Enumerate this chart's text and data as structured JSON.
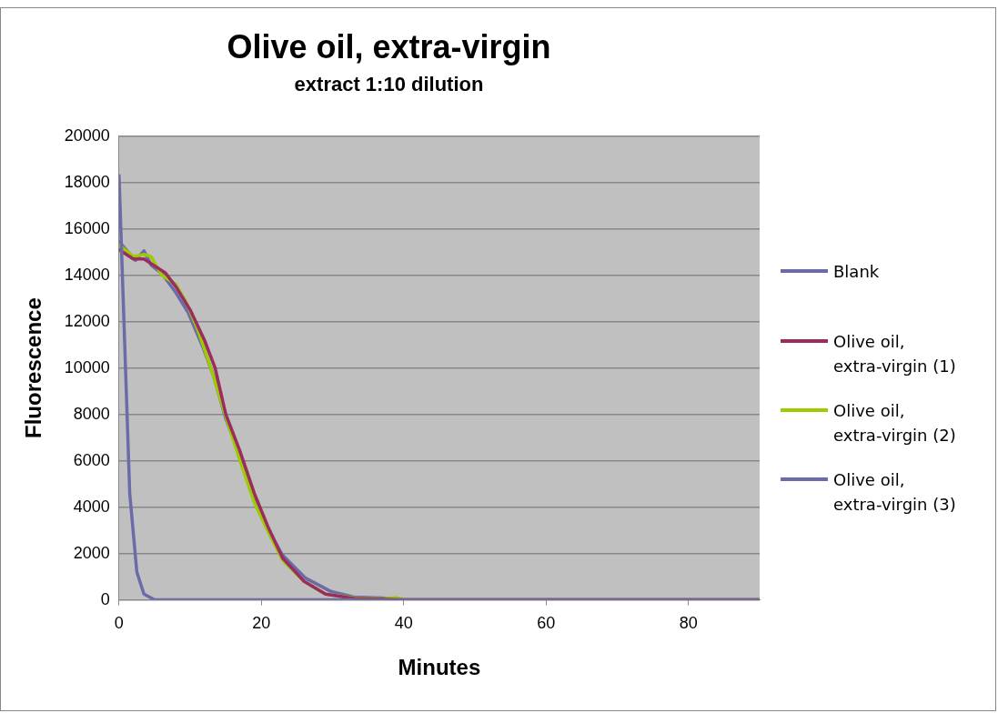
{
  "chart_data": {
    "type": "line",
    "title": "Olive oil, extra-virgin",
    "subtitle": "extract 1:10 dilution",
    "xlabel": "Minutes",
    "ylabel": "Fluorescence",
    "xlim": [
      0,
      90
    ],
    "xticks": [
      0,
      20,
      40,
      60,
      80
    ],
    "ylim": [
      0,
      20000
    ],
    "yticks": [
      0,
      2000,
      4000,
      6000,
      8000,
      10000,
      12000,
      14000,
      16000,
      18000,
      20000
    ],
    "grid": "y",
    "legend": "right",
    "marker": "none",
    "line_style": "solid",
    "series": [
      {
        "name": "Blank",
        "color": "#6b6ba8",
        "x": [
          0,
          1.5,
          2.5,
          3.5,
          5,
          90
        ],
        "values": [
          18300,
          4600,
          1200,
          250,
          0,
          0
        ]
      },
      {
        "name": "Olive oil, extra-virgin (1)",
        "color": "#9b2d5e",
        "x": [
          0,
          2,
          3.5,
          5,
          6.5,
          8,
          10,
          12,
          13.5,
          15,
          17,
          19,
          21,
          23,
          26,
          29,
          33,
          40,
          90
        ],
        "values": [
          15100,
          14700,
          14700,
          14400,
          14100,
          13500,
          12500,
          11200,
          10000,
          8000,
          6400,
          4600,
          3100,
          1800,
          800,
          250,
          60,
          0,
          0
        ]
      },
      {
        "name": "Olive oil, extra-virgin (2)",
        "color": "#9ccc00",
        "x": [
          0,
          2,
          3.5,
          4.5,
          6,
          8,
          9.5,
          11,
          13,
          15,
          17,
          19,
          21,
          23,
          26,
          29,
          33,
          37,
          39,
          40,
          90
        ],
        "values": [
          15300,
          14800,
          14900,
          14800,
          14000,
          13600,
          12800,
          11700,
          9900,
          7900,
          6000,
          4200,
          2900,
          1700,
          800,
          250,
          80,
          40,
          100,
          0,
          0
        ]
      },
      {
        "name": "Olive oil, extra-virgin (3)",
        "color": "#6b6ba8",
        "x": [
          0,
          2.3,
          3.5,
          4.5,
          6,
          7.8,
          9.7,
          11.8,
          13.3,
          15,
          17.3,
          20.1,
          22.9,
          26.2,
          29.7,
          33,
          37,
          40,
          90
        ],
        "values": [
          15450,
          14640,
          15050,
          14440,
          14070,
          13330,
          12390,
          10880,
          9650,
          7800,
          5970,
          3520,
          1960,
          940,
          370,
          120,
          80,
          0,
          0
        ]
      }
    ]
  }
}
